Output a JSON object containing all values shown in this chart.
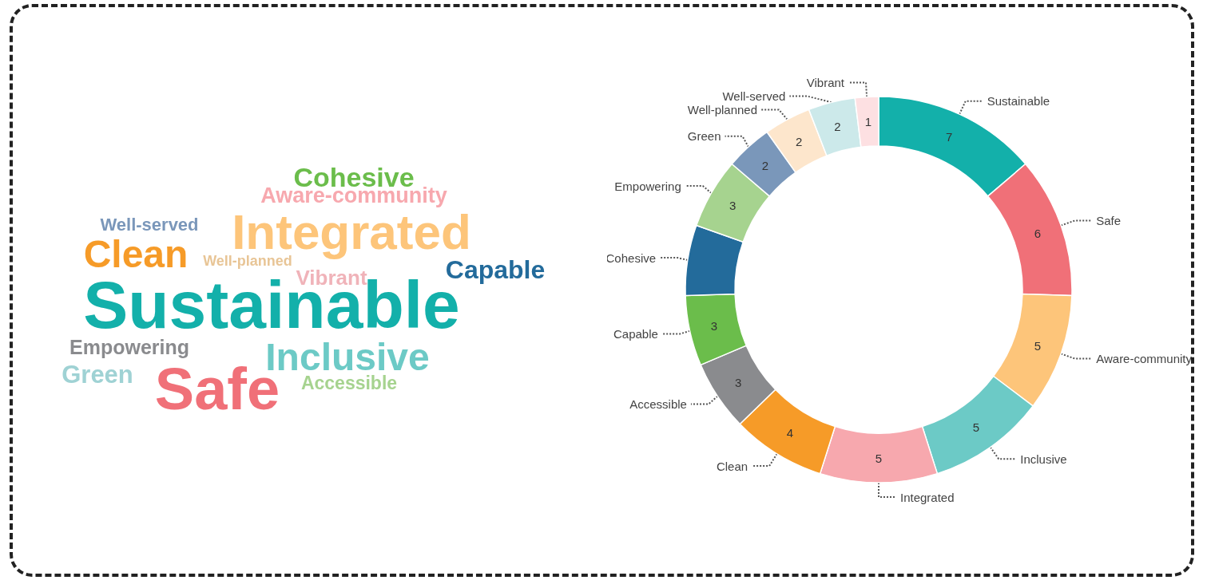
{
  "chart_data": [
    {
      "type": "other",
      "categories": [
        "Cohesive",
        "Aware-community",
        "Integrated",
        "Well-served",
        "Clean",
        "Well-planned",
        "Capable",
        "Vibrant",
        "Sustainable",
        "Empowering",
        "Inclusive",
        "Green",
        "Safe",
        "Accessible"
      ],
      "colors": [
        "#6bbd4b",
        "#f7a8ae",
        "#fdc57a",
        "#7a97ba",
        "#f69b28",
        "#e8c596",
        "#236b9b",
        "#f0b3b9",
        "#13b0aa",
        "#8a8b8e",
        "#6ccac6",
        "#9fd2d4",
        "#f07078",
        "#a6d38f"
      ]
    },
    {
      "type": "donut",
      "categories": [
        "Sustainable",
        "Safe",
        "Aware-community",
        "Inclusive",
        "Integrated",
        "Clean",
        "Accessible",
        "Capable",
        "Cohesive",
        "Empowering",
        "Green",
        "Well-planned",
        "Well-served",
        "Vibrant"
      ],
      "values": [
        7,
        6,
        5,
        5,
        5,
        4,
        3,
        3,
        3,
        3,
        2,
        2,
        2,
        1
      ],
      "value_labels": [
        "7",
        "6",
        "5",
        "5",
        "5",
        "4",
        "3",
        "3",
        null,
        "3",
        "2",
        "2",
        "2",
        "1"
      ],
      "colors": [
        "#13b0aa",
        "#f07078",
        "#fdc57a",
        "#6ccac6",
        "#f7a8ae",
        "#f69b28",
        "#8a8b8e",
        "#6bbd4b",
        "#236b9b",
        "#a6d38f",
        "#7a97ba",
        "#fde6cc",
        "#cce9ea",
        "#fde0e2"
      ]
    }
  ]
}
